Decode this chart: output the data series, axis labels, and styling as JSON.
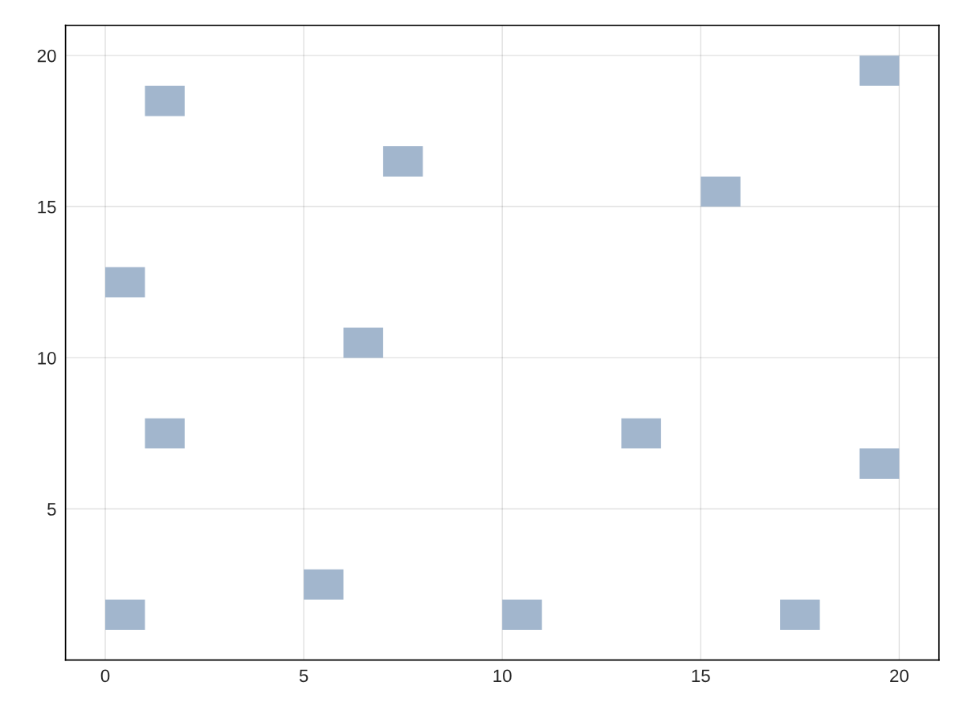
{
  "chart_data": {
    "type": "bar",
    "series": [
      {
        "color": "#a2b6cd",
        "x": [
          0.5,
          1.5,
          5.5,
          6.5,
          7.5,
          10.5,
          13.5,
          15.5,
          17.5,
          19.5
        ],
        "base": [
          1,
          7,
          2,
          10,
          16,
          1,
          7,
          15,
          1,
          6
        ],
        "values": [
          1,
          1,
          1,
          1,
          1,
          1,
          1,
          1,
          1,
          1
        ]
      },
      {
        "color": "#a2b6cd",
        "x": [
          0.5,
          1.5,
          19.5
        ],
        "base": [
          12,
          18,
          19
        ],
        "values": [
          1,
          1,
          1
        ]
      }
    ],
    "xlim": [
      -1,
      21
    ],
    "ylim": [
      0,
      21
    ],
    "xticks": [
      0,
      5,
      10,
      15,
      20
    ],
    "yticks": [
      5,
      10,
      15,
      20
    ],
    "grid": true
  }
}
